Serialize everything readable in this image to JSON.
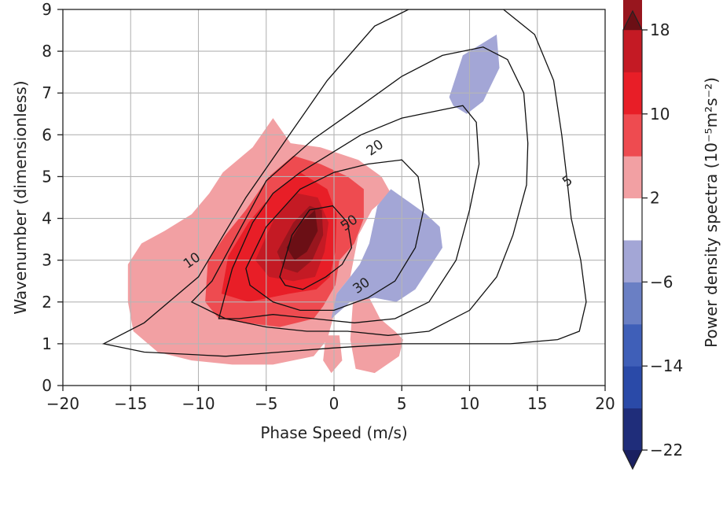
{
  "chart_data": {
    "type": "contour",
    "title": "",
    "xlabel": "Phase Speed (m/s)",
    "ylabel": "Wavenumber (dimensionless)",
    "xlim": [
      -20,
      20
    ],
    "ylim": [
      0,
      9
    ],
    "xticks": [
      -20,
      -15,
      -10,
      -5,
      0,
      5,
      10,
      15,
      20
    ],
    "xtick_labels": [
      "−20",
      "−15",
      "−10",
      "−5",
      "0",
      "5",
      "10",
      "15",
      "20"
    ],
    "yticks": [
      0,
      1,
      2,
      3,
      4,
      5,
      6,
      7,
      8,
      9
    ],
    "ytick_labels": [
      "0",
      "1",
      "2",
      "3",
      "4",
      "5",
      "6",
      "7",
      "8",
      "9"
    ],
    "grid": true,
    "colorbar": {
      "label": "Power density spectra (10⁻⁵m²s⁻²)",
      "ticks": [
        18,
        10,
        2,
        -6,
        -14,
        -22
      ],
      "tick_labels": [
        "18",
        "10",
        "2",
        "−6",
        "−14",
        "−22"
      ],
      "levels": [
        -26,
        -22,
        -18,
        -14,
        -10,
        -6,
        -2,
        2,
        6,
        10,
        14,
        18,
        22
      ],
      "extend": "both",
      "colors": [
        "#1a2060",
        "#1f2d7a",
        "#2a4aa8",
        "#3f5fb8",
        "#6a7fc4",
        "#a3a6d6",
        "#ffffff",
        "#f2a0a3",
        "#ee4b50",
        "#e81e27",
        "#c41a24",
        "#98161e",
        "#6b0f15"
      ]
    },
    "filled_regions": [
      {
        "level": 2,
        "color": "#f2a0a3",
        "points": [
          [
            -15.2,
            2.0
          ],
          [
            -15.2,
            2.9
          ],
          [
            -14.2,
            3.4
          ],
          [
            -12.5,
            3.7
          ],
          [
            -10.5,
            4.1
          ],
          [
            -9.2,
            4.6
          ],
          [
            -8.2,
            5.1
          ],
          [
            -6.0,
            5.7
          ],
          [
            -4.5,
            6.4
          ],
          [
            -3.2,
            5.8
          ],
          [
            -1.0,
            5.7
          ],
          [
            1.8,
            5.4
          ],
          [
            3.5,
            5.0
          ],
          [
            4.2,
            4.6
          ],
          [
            2.8,
            4.2
          ],
          [
            1.8,
            3.6
          ],
          [
            1.2,
            2.6
          ],
          [
            0.2,
            2.2
          ],
          [
            0.0,
            1.7
          ],
          [
            -0.5,
            1.1
          ],
          [
            -1.5,
            0.7
          ],
          [
            -4.5,
            0.5
          ],
          [
            -7.5,
            0.5
          ],
          [
            -10.5,
            0.6
          ],
          [
            -13.0,
            0.8
          ],
          [
            -14.8,
            1.3
          ]
        ]
      },
      {
        "level": 2,
        "color": "#f2a0a3",
        "points": [
          [
            1.4,
            2.0
          ],
          [
            2.6,
            2.1
          ],
          [
            3.4,
            1.6
          ],
          [
            4.5,
            1.3
          ],
          [
            5.1,
            1.1
          ],
          [
            4.8,
            0.7
          ],
          [
            3.0,
            0.3
          ],
          [
            1.6,
            0.4
          ],
          [
            1.2,
            1.1
          ]
        ]
      },
      {
        "level": 2,
        "color": "#f2a0a3",
        "points": [
          [
            -0.6,
            1.2
          ],
          [
            0.4,
            1.2
          ],
          [
            0.6,
            0.6
          ],
          [
            -0.2,
            0.3
          ],
          [
            -0.8,
            0.6
          ]
        ]
      },
      {
        "level": 6,
        "color": "#ee4b50",
        "points": [
          [
            -9.5,
            2.0
          ],
          [
            -9.3,
            3.0
          ],
          [
            -8.0,
            3.6
          ],
          [
            -6.5,
            4.2
          ],
          [
            -4.8,
            5.0
          ],
          [
            -3.0,
            5.5
          ],
          [
            -1.0,
            5.3
          ],
          [
            1.0,
            5.0
          ],
          [
            2.2,
            4.7
          ],
          [
            2.2,
            4.0
          ],
          [
            1.5,
            3.4
          ],
          [
            0.4,
            3.0
          ],
          [
            0.1,
            2.4
          ],
          [
            -0.8,
            1.9
          ],
          [
            -1.5,
            1.6
          ],
          [
            -4.0,
            1.4
          ],
          [
            -6.5,
            1.5
          ],
          [
            -8.5,
            1.6
          ]
        ]
      },
      {
        "level": 10,
        "color": "#e81e27",
        "points": [
          [
            -8.3,
            2.2
          ],
          [
            -7.8,
            3.1
          ],
          [
            -6.3,
            3.9
          ],
          [
            -4.5,
            4.6
          ],
          [
            -2.5,
            5.1
          ],
          [
            -0.5,
            4.7
          ],
          [
            0.2,
            4.1
          ],
          [
            0.1,
            3.2
          ],
          [
            -0.3,
            2.6
          ],
          [
            -1.3,
            2.3
          ],
          [
            -3.3,
            2.2
          ],
          [
            -6.3,
            2.0
          ]
        ]
      },
      {
        "level": 14,
        "color": "#c41a24",
        "points": [
          [
            -5.8,
            3.0
          ],
          [
            -4.4,
            4.0
          ],
          [
            -2.7,
            4.6
          ],
          [
            -1.2,
            4.5
          ],
          [
            -0.4,
            3.9
          ],
          [
            -0.7,
            3.2
          ],
          [
            -1.4,
            2.6
          ],
          [
            -3.0,
            2.5
          ],
          [
            -4.8,
            2.6
          ]
        ]
      },
      {
        "level": 18,
        "color": "#98161e",
        "points": [
          [
            -4.2,
            3.2
          ],
          [
            -3.0,
            3.9
          ],
          [
            -1.8,
            4.3
          ],
          [
            -0.9,
            4.2
          ],
          [
            -0.8,
            3.6
          ],
          [
            -1.6,
            3.0
          ],
          [
            -2.7,
            2.7
          ],
          [
            -3.7,
            2.8
          ]
        ]
      },
      {
        "level": 22,
        "color": "#6b0f15",
        "points": [
          [
            -3.5,
            3.3
          ],
          [
            -2.4,
            3.9
          ],
          [
            -1.4,
            4.2
          ],
          [
            -1.2,
            3.7
          ],
          [
            -2.0,
            3.2
          ],
          [
            -2.9,
            3.0
          ]
        ]
      },
      {
        "level": -6,
        "color": "#a3a6d6",
        "points": [
          [
            -0.2,
            1.6
          ],
          [
            0.2,
            2.2
          ],
          [
            1.2,
            2.6
          ],
          [
            1.9,
            2.9
          ],
          [
            2.6,
            3.4
          ],
          [
            3.2,
            4.3
          ],
          [
            4.2,
            4.7
          ],
          [
            5.5,
            4.4
          ],
          [
            6.8,
            4.1
          ],
          [
            7.8,
            3.8
          ],
          [
            8.0,
            3.3
          ],
          [
            7.2,
            2.9
          ],
          [
            6.0,
            2.3
          ],
          [
            4.6,
            2.0
          ],
          [
            3.0,
            2.1
          ],
          [
            1.2,
            2.0
          ]
        ]
      },
      {
        "level": -6,
        "color": "#a3a6d6",
        "points": [
          [
            8.5,
            6.9
          ],
          [
            9.5,
            7.9
          ],
          [
            11.0,
            8.2
          ],
          [
            12.0,
            8.4
          ],
          [
            12.2,
            7.6
          ],
          [
            11.0,
            6.8
          ],
          [
            9.8,
            6.5
          ],
          [
            8.8,
            6.7
          ]
        ]
      }
    ],
    "contour_lines": [
      {
        "level": 5,
        "label": "5",
        "points": [
          [
            -17.0,
            1.0
          ],
          [
            -14.0,
            1.5
          ],
          [
            -10.0,
            2.6
          ],
          [
            -6.5,
            4.5
          ],
          [
            -3.5,
            5.9
          ],
          [
            -0.5,
            7.3
          ],
          [
            3.0,
            8.6
          ],
          [
            5.5,
            9.0
          ],
          [
            9.0,
            9.0
          ],
          [
            12.5,
            9.0
          ],
          [
            14.8,
            8.4
          ],
          [
            16.2,
            7.3
          ],
          [
            16.8,
            6.0
          ],
          [
            17.2,
            4.9
          ],
          [
            17.5,
            4.0
          ],
          [
            18.2,
            3.0
          ],
          [
            18.6,
            2.0
          ],
          [
            18.1,
            1.3
          ],
          [
            16.5,
            1.1
          ],
          [
            13.0,
            1.0
          ],
          [
            5.0,
            1.0
          ],
          [
            0.0,
            0.9
          ],
          [
            -8.0,
            0.7
          ],
          [
            -14.0,
            0.8
          ]
        ]
      },
      {
        "level": 10,
        "label": "10",
        "points": [
          [
            -10.5,
            2.0
          ],
          [
            -9.0,
            2.5
          ],
          [
            -7.5,
            3.4
          ],
          [
            -5.0,
            4.9
          ],
          [
            -1.5,
            5.9
          ],
          [
            2.0,
            6.7
          ],
          [
            5.0,
            7.4
          ],
          [
            8.0,
            7.9
          ],
          [
            11.0,
            8.1
          ],
          [
            12.8,
            7.8
          ],
          [
            14.0,
            7.0
          ],
          [
            14.3,
            5.8
          ],
          [
            14.2,
            4.8
          ],
          [
            13.2,
            3.6
          ],
          [
            12.0,
            2.6
          ],
          [
            10.0,
            1.8
          ],
          [
            7.0,
            1.3
          ],
          [
            4.0,
            1.2
          ],
          [
            1.0,
            1.3
          ],
          [
            -2.0,
            1.3
          ],
          [
            -5.0,
            1.4
          ],
          [
            -8.0,
            1.6
          ]
        ]
      },
      {
        "level": 20,
        "label": "20",
        "points": [
          [
            -8.5,
            1.6
          ],
          [
            -7.5,
            2.8
          ],
          [
            -6.0,
            3.9
          ],
          [
            -4.5,
            4.6
          ],
          [
            -2.5,
            5.1
          ],
          [
            -0.5,
            5.5
          ],
          [
            2.0,
            6.0
          ],
          [
            5.0,
            6.4
          ],
          [
            8.0,
            6.6
          ],
          [
            9.5,
            6.7
          ],
          [
            10.5,
            6.3
          ],
          [
            10.7,
            5.3
          ],
          [
            10.0,
            4.2
          ],
          [
            9.0,
            3.0
          ],
          [
            7.0,
            2.0
          ],
          [
            4.5,
            1.6
          ],
          [
            1.5,
            1.5
          ],
          [
            -1.5,
            1.6
          ],
          [
            -4.5,
            1.7
          ],
          [
            -7.0,
            1.6
          ]
        ]
      },
      {
        "level": 30,
        "label": "30",
        "points": [
          [
            -6.5,
            2.8
          ],
          [
            -5.0,
            3.8
          ],
          [
            -2.5,
            4.7
          ],
          [
            0.0,
            5.1
          ],
          [
            2.5,
            5.3
          ],
          [
            5.0,
            5.4
          ],
          [
            6.2,
            5.0
          ],
          [
            6.6,
            4.2
          ],
          [
            6.0,
            3.3
          ],
          [
            4.5,
            2.5
          ],
          [
            2.5,
            2.1
          ],
          [
            0.0,
            1.8
          ],
          [
            -2.5,
            1.8
          ],
          [
            -4.5,
            2.0
          ],
          [
            -6.2,
            2.4
          ]
        ]
      },
      {
        "level": 50,
        "label": "50",
        "points": [
          [
            -4.0,
            2.6
          ],
          [
            -3.1,
            3.6
          ],
          [
            -1.8,
            4.2
          ],
          [
            -0.1,
            4.3
          ],
          [
            1.0,
            3.9
          ],
          [
            1.3,
            3.3
          ],
          [
            0.6,
            2.9
          ],
          [
            -0.6,
            2.6
          ],
          [
            -2.3,
            2.3
          ],
          [
            -3.6,
            2.4
          ]
        ]
      }
    ],
    "contour_label_positions": [
      {
        "label": "5",
        "x": 17.2,
        "y": 4.9
      },
      {
        "label": "10",
        "x": -10.5,
        "y": 3.0
      },
      {
        "label": "20",
        "x": 3.0,
        "y": 5.7
      },
      {
        "label": "30",
        "x": 2.0,
        "y": 2.4
      },
      {
        "label": "50",
        "x": 1.1,
        "y": 3.9
      }
    ]
  }
}
